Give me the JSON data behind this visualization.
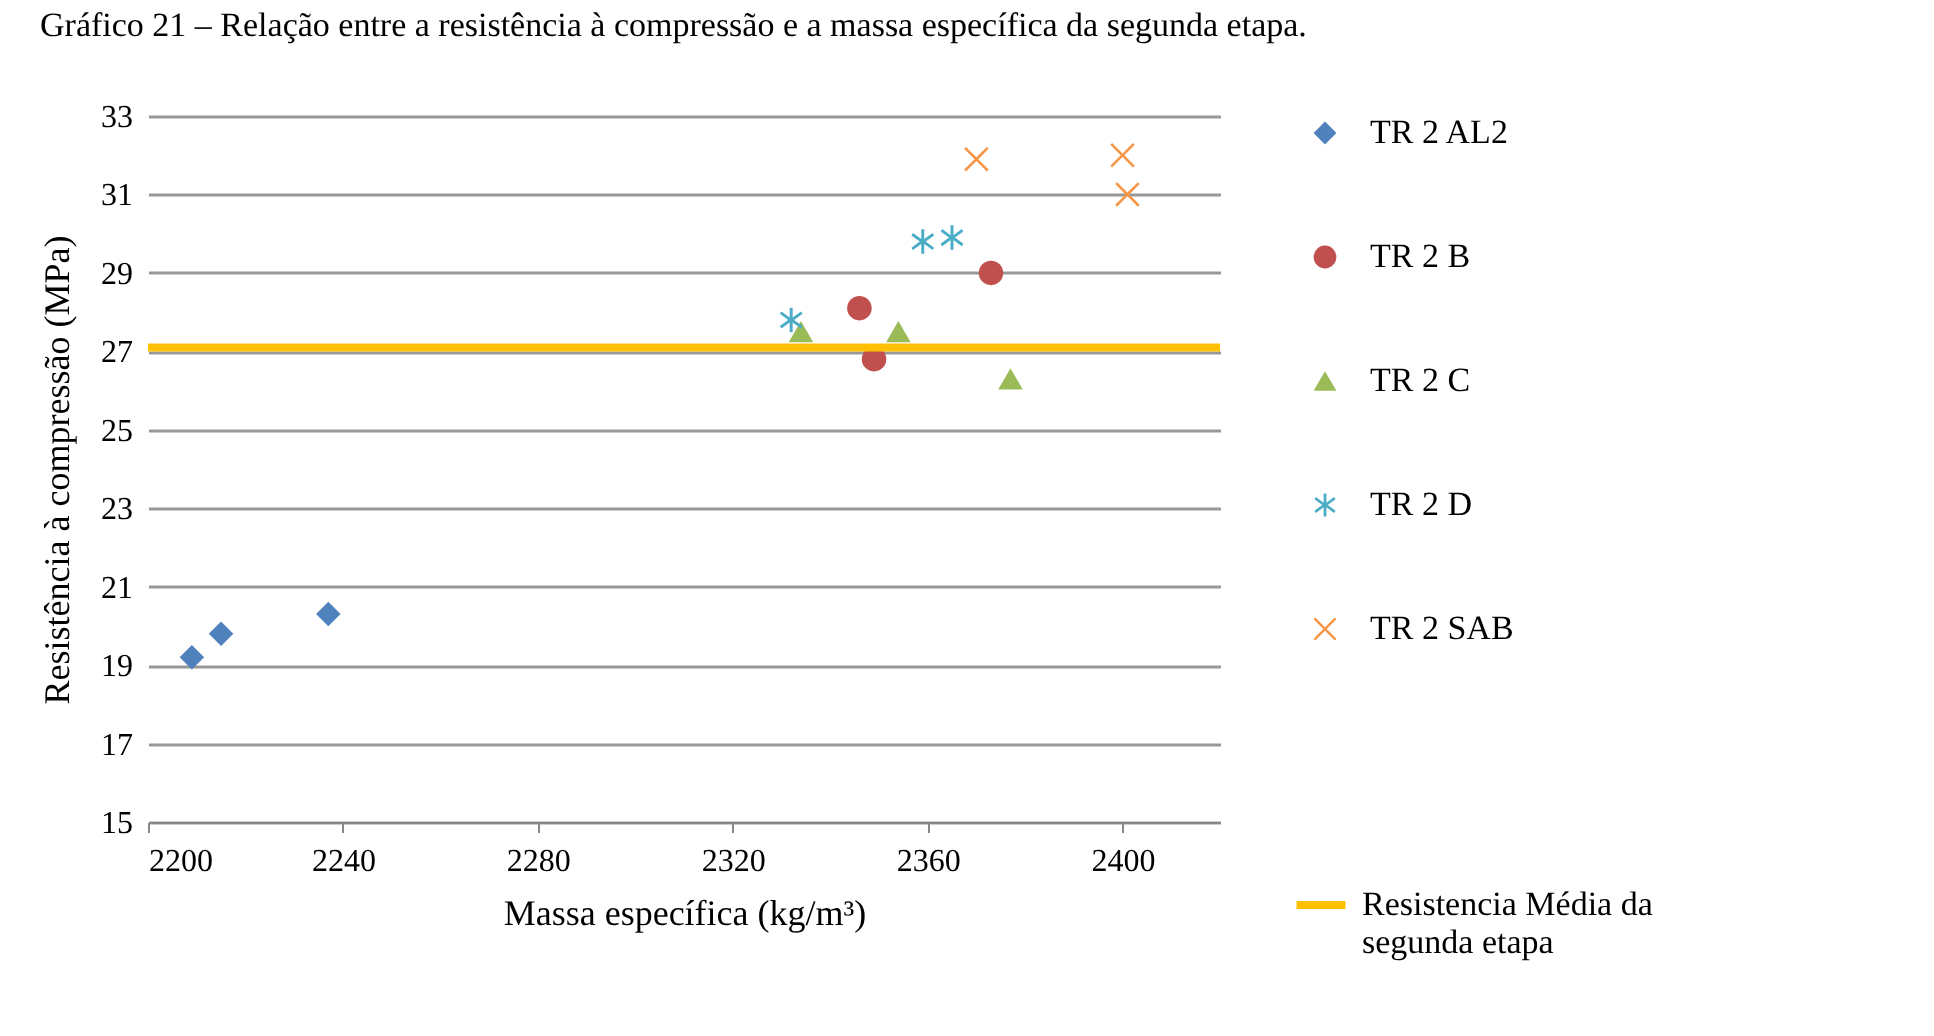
{
  "chart_data": {
    "type": "scatter",
    "title": "Gráfico 21 – Relação entre a resistência à compressão e a massa específica da segunda etapa.",
    "xlabel": "Massa específica (kg/m³)",
    "ylabel": "Resistência à compressão (MPa)",
    "xlim": [
      2200,
      2420
    ],
    "xticks": [
      2200,
      2240,
      2280,
      2320,
      2360,
      2400
    ],
    "ylim": [
      15,
      33
    ],
    "yticks": [
      15,
      17,
      19,
      21,
      23,
      25,
      27,
      29,
      31,
      33
    ],
    "grid": "y",
    "legend": "right",
    "series": [
      {
        "name": "TR 2 AL2",
        "color": "#4f81bd",
        "marker": "diamond",
        "x": [
          2209,
          2215,
          2237
        ],
        "values": [
          19.2,
          19.8,
          20.3
        ]
      },
      {
        "name": "TR 2 B",
        "color": "#c0504d",
        "marker": "circle",
        "x": [
          2346,
          2349,
          2373
        ],
        "values": [
          28.1,
          26.8,
          29.0
        ]
      },
      {
        "name": "TR 2 C",
        "color": "#9bbb59",
        "marker": "triangle",
        "x": [
          2334,
          2354,
          2377
        ],
        "values": [
          27.5,
          27.5,
          26.3
        ]
      },
      {
        "name": "TR 2 D",
        "color": "#4bacc6",
        "marker": "star",
        "x": [
          2332,
          2359,
          2365
        ],
        "values": [
          27.8,
          29.8,
          29.9
        ]
      },
      {
        "name": "TR 2 SAB",
        "color": "#f79646",
        "marker": "cross",
        "x": [
          2370,
          2400,
          2401
        ],
        "values": [
          31.9,
          32.0,
          31.0
        ]
      }
    ],
    "ref_lines": [
      {
        "axis": "y",
        "value": 27.1,
        "label": "Resistencia Média da segunda etapa",
        "color": "#ffc000"
      }
    ]
  }
}
